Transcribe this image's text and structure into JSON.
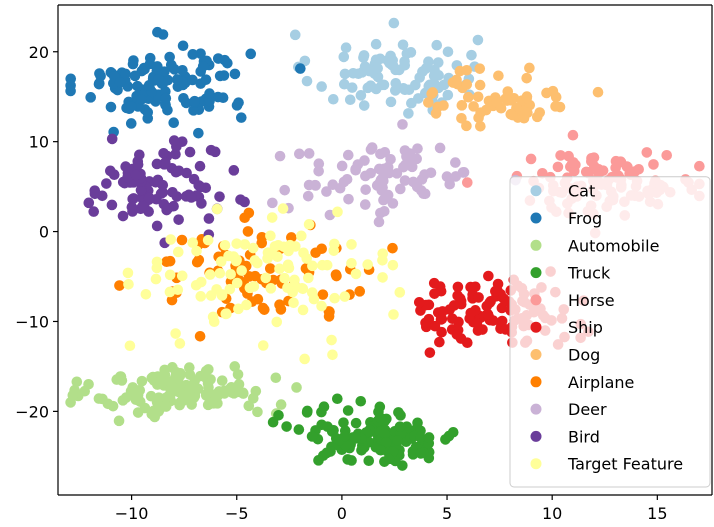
{
  "chart_data": {
    "type": "scatter",
    "title": "",
    "xlabel": "",
    "ylabel": "",
    "xlim": [
      -13.5,
      17.6
    ],
    "ylim": [
      -29.3,
      25.2
    ],
    "x_ticks": [
      -10,
      -5,
      0,
      5,
      10,
      15
    ],
    "y_ticks": [
      -20,
      -10,
      0,
      10,
      20
    ],
    "x_tick_labels": [
      "−10",
      "−5",
      "0",
      "5",
      "10",
      "15"
    ],
    "y_tick_labels": [
      "−20",
      "−10",
      "0",
      "10",
      "20"
    ],
    "grid": false,
    "legend_position": "lower-right",
    "series": [
      {
        "name": "Cat",
        "color": "#a6cee3",
        "cluster": {
          "center": [
            2.5,
            17.5
          ],
          "spread": [
            2.6,
            3.0
          ],
          "count": 90
        }
      },
      {
        "name": "Frog",
        "color": "#1f78b4",
        "cluster": {
          "center": [
            -8.5,
            16.5
          ],
          "spread": [
            2.7,
            2.8
          ],
          "count": 130
        }
      },
      {
        "name": "Automobile",
        "color": "#b2df8a",
        "cluster": {
          "center": [
            -7.5,
            -17.8
          ],
          "spread": [
            2.8,
            1.9
          ],
          "count": 130
        }
      },
      {
        "name": "Truck",
        "color": "#33a02c",
        "cluster": {
          "center": [
            1.8,
            -22.8
          ],
          "spread": [
            2.5,
            2.0
          ],
          "count": 140
        }
      },
      {
        "name": "Horse",
        "color": "#fb9a99",
        "cluster": {
          "center": [
            12.5,
            5.5
          ],
          "spread": [
            3.0,
            2.3
          ],
          "count": 110
        }
      },
      {
        "name": "Ship",
        "color": "#e31a1c",
        "cluster": {
          "center": [
            7.2,
            -9.0
          ],
          "spread": [
            2.6,
            2.4
          ],
          "count": 110
        }
      },
      {
        "name": "Dog",
        "color": "#fdbf6f",
        "cluster": {
          "center": [
            7.5,
            15.0
          ],
          "spread": [
            2.2,
            2.4
          ],
          "count": 60
        }
      },
      {
        "name": "Airplane",
        "color": "#ff7f00",
        "cluster": {
          "center": [
            -4.0,
            -4.5
          ],
          "spread": [
            3.8,
            3.4
          ],
          "count": 75
        }
      },
      {
        "name": "Deer",
        "color": "#cab2d6",
        "cluster": {
          "center": [
            2.0,
            6.0
          ],
          "spread": [
            3.2,
            2.8
          ],
          "count": 80
        }
      },
      {
        "name": "Bird",
        "color": "#6a3d9a",
        "cluster": {
          "center": [
            -9.0,
            4.8
          ],
          "spread": [
            2.0,
            3.0
          ],
          "count": 100
        }
      },
      {
        "name": "Target Feature",
        "color": "#ffff99",
        "cluster": {
          "center": [
            -3.5,
            -5.0
          ],
          "spread": [
            4.0,
            4.5
          ],
          "count": 110
        }
      }
    ]
  }
}
